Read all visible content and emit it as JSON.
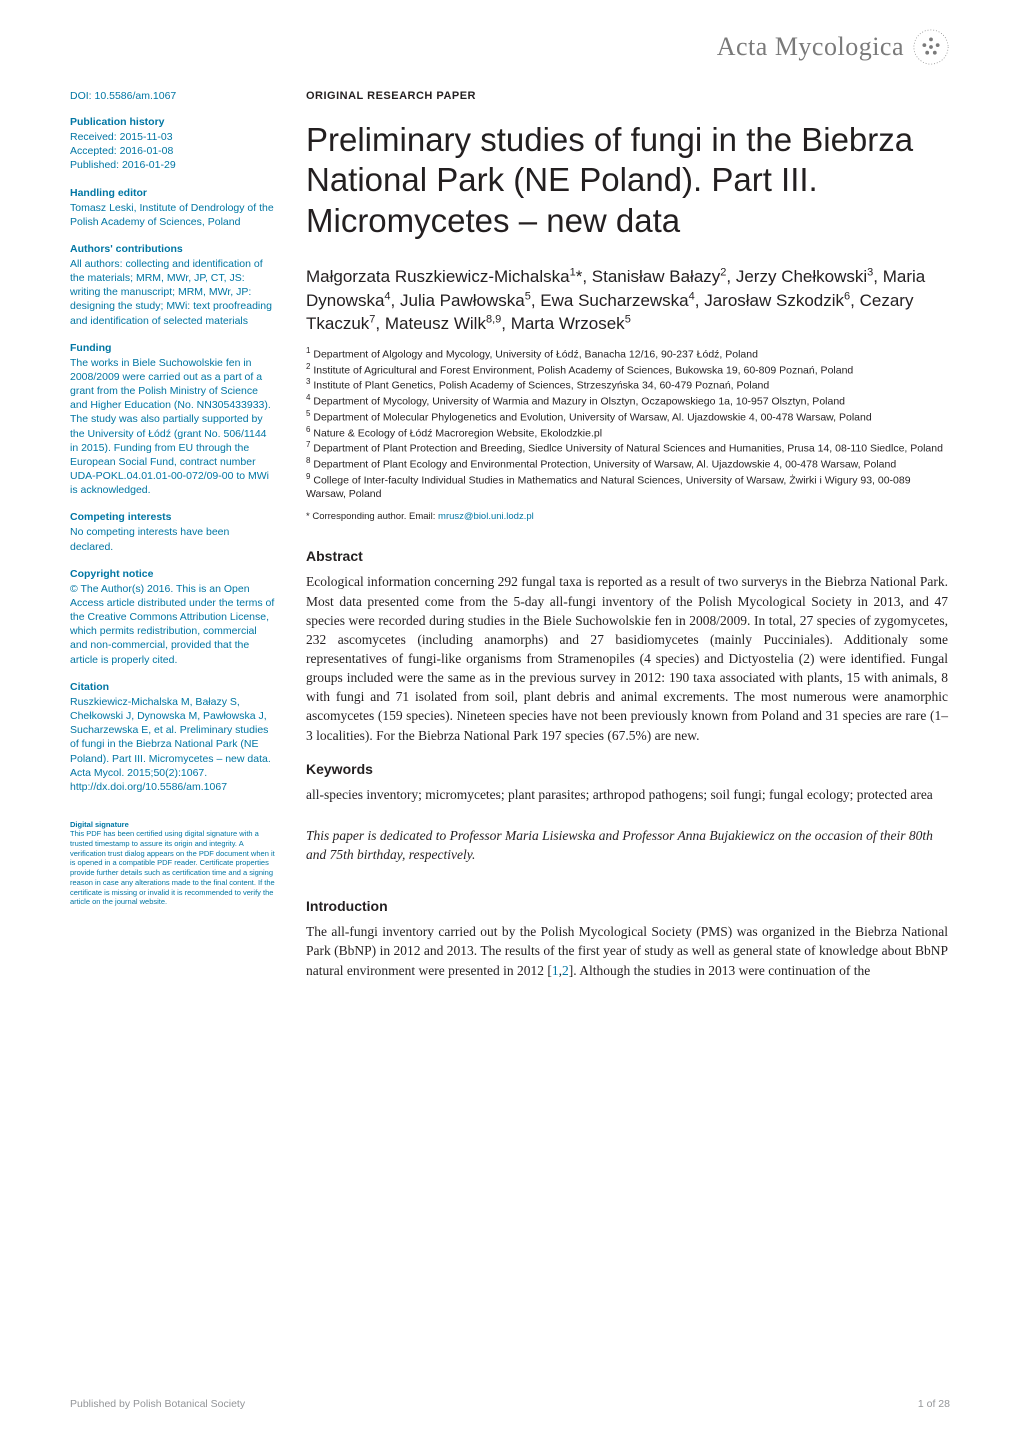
{
  "journal": {
    "name": "Acta Mycologica"
  },
  "doi": {
    "label": "DOI: ",
    "value": "10.5586/am.1067"
  },
  "sidebar": {
    "publication_history": {
      "heading": "Publication history",
      "received": "Received: 2015-11-03",
      "accepted": "Accepted: 2016-01-08",
      "published": "Published: 2016-01-29"
    },
    "handling_editor": {
      "heading": "Handling editor",
      "text": "Tomasz Leski, Institute of Dendrology of the Polish Academy of Sciences, Poland"
    },
    "contributions": {
      "heading": "Authors' contributions",
      "text": "All authors: collecting and identification of the materials; MRM, MWr, JP, CT, JS: writing the manuscript; MRM, MWr, JP: designing the study; MWi: text proofreading and identification of selected materials"
    },
    "funding": {
      "heading": "Funding",
      "text": "The works in Biele Suchowolskie fen in 2008/2009 were carried out as a part of a grant from the Polish Ministry of Science and Higher Education (No. NN305433933). The study was also partially supported by the University of Łódź (grant No. 506/1144 in 2015). Funding from EU through the European Social Fund, contract number UDA-POKL.04.01.01-00-072/09-00 to MWi is acknowledged."
    },
    "competing": {
      "heading": "Competing interests",
      "text": "No competing interests have been declared."
    },
    "copyright": {
      "heading": "Copyright notice",
      "text_before": "© The Author(s) 2016. This is an Open Access article distributed under the terms of the ",
      "link": "Creative Commons Attribution License",
      "text_after": ", which permits redistribution, commercial and non-commercial, provided that the article is properly cited."
    },
    "citation": {
      "heading": "Citation",
      "text_before": "Ruszkiewicz-Michalska M, Bałazy S, Chełkowski J, Dynowska M, Pawłowska J, Sucharzewska E, et al. Preliminary studies of fungi in the Biebrza National Park (NE Poland). Part III. Micromycetes – new data. Acta Mycol. 2015;50(2):1067. ",
      "link": "http://dx.doi.org/10.5586/am.1067"
    },
    "signature": {
      "heading": "Digital signature",
      "text": "This PDF has been certified using digital signature with a trusted timestamp to assure its origin and integrity. A verification trust dialog appears on the PDF document when it is opened in a compatible PDF reader. Certificate properties provide further details such as certification time and a signing reason in case any alterations made to the final content. If the certificate is missing or invalid it is recommended to verify the article on the journal website."
    }
  },
  "main": {
    "paper_type": "ORIGINAL RESEARCH PAPER",
    "title": "Preliminary studies of fungi in the Biebrza National Park (NE Poland). Part III. Micromycetes – new data",
    "authors_html": "Małgorzata Ruszkiewicz-Michalska<sup>1</sup>*, Stanisław Bałazy<sup>2</sup>, Jerzy Chełkowski<sup>3</sup>, Maria Dynowska<sup>4</sup>, Julia Pawłowska<sup>5</sup>, Ewa Sucharzewska<sup>4</sup>, Jarosław Szkodzik<sup>6</sup>, Cezary Tkaczuk<sup>7</sup>, Mateusz Wilk<sup>8,9</sup>, Marta Wrzosek<sup>5</sup>",
    "affiliations": [
      "Department of Algology and Mycology, University of Łódź, Banacha 12/16, 90-237 Łódź, Poland",
      "Institute of Agricultural and Forest Environment, Polish Academy of Sciences, Bukowska 19, 60-809 Poznań, Poland",
      "Institute of Plant Genetics, Polish Academy of Sciences, Strzeszyńska 34, 60-479 Poznań, Poland",
      "Department of Mycology, University of Warmia and Mazury in Olsztyn, Oczapowskiego 1a, 10-957 Olsztyn, Poland",
      "Department of Molecular Phylogenetics and Evolution, University of Warsaw, Al. Ujazdowskie 4, 00-478 Warsaw, Poland",
      "Nature & Ecology of Łódź Macroregion Website, Ekolodzkie.pl",
      "Department of Plant Protection and Breeding, Siedlce University of Natural Sciences and Humanities, Prusa 14, 08-110 Siedlce, Poland",
      "Department of Plant Ecology and Environmental Protection, University of Warsaw, Al. Ujazdowskie 4, 00-478 Warsaw, Poland",
      "College of Inter-faculty Individual Studies in Mathematics and Natural Sciences, University of Warsaw, Żwirki i Wigury 93, 00-089 Warsaw, Poland"
    ],
    "corresponding_label": "* Corresponding author. Email: ",
    "corresponding_email": "mrusz@biol.uni.lodz.pl",
    "abstract": {
      "heading": "Abstract",
      "text": "Ecological information concerning 292 fungal taxa is reported as a result of two surverys in the Biebrza National Park. Most data presented come from the 5-day all-fungi inventory of the Polish Mycological Society in 2013, and 47 species were recorded during studies in the Biele Suchowolskie fen in 2008/2009. In total, 27 species of zygomycetes, 232 ascomycetes (including anamorphs) and 27 basidiomycetes (mainly Pucciniales). Additionaly some representatives of fungi-like organisms from Stramenopiles (4 species) and Dictyostelia (2) were identified. Fungal groups included were the same as in the previous survey in 2012: 190 taxa associated with plants, 15 with animals, 8 with fungi and 71 isolated from soil, plant debris and animal excrements. The most numerous were anamorphic ascomycetes (159 species). Nineteen species have not been previously known from Poland and 31 species are rare (1–3 localities). For the Biebrza National Park 197 species (67.5%) are new."
    },
    "keywords": {
      "heading": "Keywords",
      "text": "all-species inventory; micromycetes; plant parasites; arthropod pathogens; soil fungi; fungal ecology; protected area"
    },
    "dedication": "This paper is dedicated to Professor Maria Lisiewska and Professor Anna Bujakiewicz on the occasion of their 80th and 75th birthday, respectively.",
    "introduction": {
      "heading": "Introduction",
      "text_before": "The all-fungi inventory carried out by the Polish Mycological Society (PMS) was organized in the Biebrza National Park (BbNP) in 2012 and 2013. The results of the first year of study as well as general state of knowledge about BbNP natural environment were presented in 2012 [",
      "ref1": "1",
      "ref_sep": ",",
      "ref2": "2",
      "text_after": "]. Although the studies in 2013 were continuation of the"
    }
  },
  "footer": {
    "publisher": "Published by Polish Botanical Society",
    "page": "1 of 28"
  },
  "colors": {
    "link_blue": "#0076a3",
    "body_black": "#231f20",
    "footer_gray": "#939598",
    "journal_gray": "#7a7a7a"
  },
  "fontsizes": {
    "journal_name": 26,
    "title": 33,
    "authors": 17,
    "section_heading": 14,
    "body": 13.5,
    "sidebar": 10.5,
    "affiliations": 10.5,
    "corresponding": 9.5,
    "paper_type": 11,
    "footer": 10.5,
    "signature": 7.5
  }
}
